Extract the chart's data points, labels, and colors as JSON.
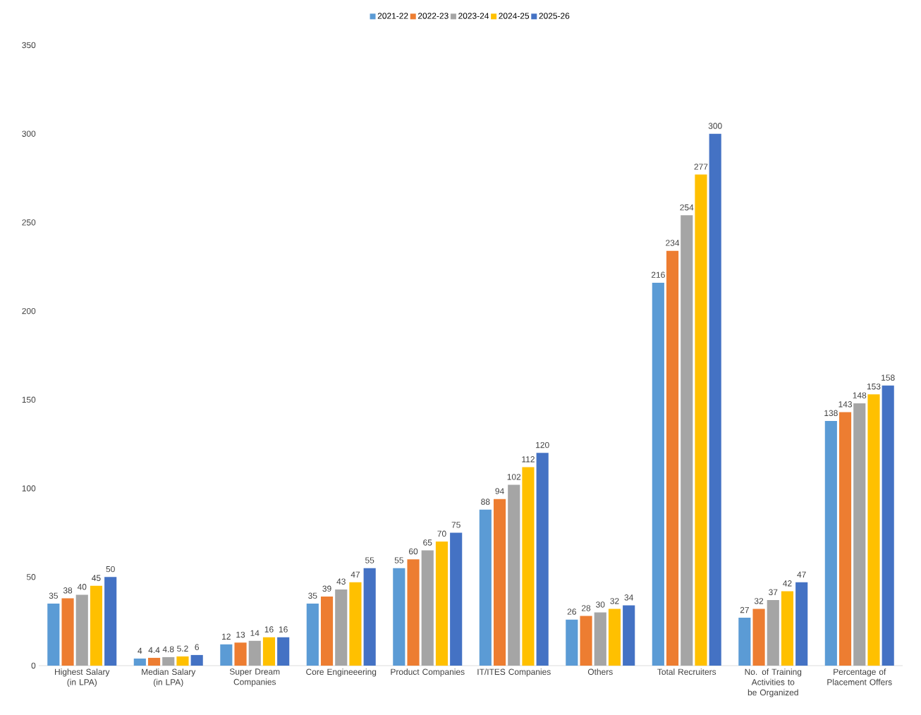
{
  "chart_data": {
    "type": "bar",
    "categories": [
      "Highest Salary (in LPA)",
      "Median Salary (in LPA)",
      "Super Dream Companies",
      "Core Engineeering",
      "Product Companies",
      "IT/ITES Companies",
      "Others",
      "Total Recruiters",
      "No. of Training Activities to be Organized",
      "Percentage of Placement Offers"
    ],
    "series": [
      {
        "name": "2021-22",
        "color": "#5b9bd5",
        "values": [
          35,
          4,
          12,
          35,
          55,
          88,
          26,
          216,
          27,
          138
        ]
      },
      {
        "name": "2022-23",
        "color": "#ed7d31",
        "values": [
          38,
          4.4,
          13,
          39,
          60,
          94,
          28,
          234,
          32,
          143
        ]
      },
      {
        "name": "2023-24",
        "color": "#a5a5a5",
        "values": [
          40,
          4.8,
          14,
          43,
          65,
          102,
          30,
          254,
          37,
          148
        ]
      },
      {
        "name": "2024-25",
        "color": "#ffc000",
        "values": [
          45,
          5.2,
          16,
          47,
          70,
          112,
          32,
          277,
          42,
          153
        ]
      },
      {
        "name": "2025-26",
        "color": "#4472c4",
        "values": [
          50,
          6,
          16,
          55,
          75,
          120,
          34,
          300,
          47,
          158
        ]
      }
    ],
    "ylim": [
      0,
      350
    ],
    "yticks": [
      0,
      50,
      100,
      150,
      200,
      250,
      300,
      350
    ],
    "grid": false,
    "legend": "top",
    "data_labels": true
  }
}
